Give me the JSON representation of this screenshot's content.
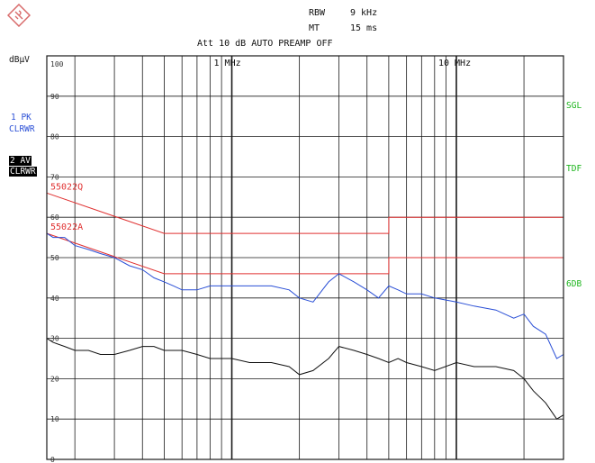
{
  "header": {
    "rbw_label": "RBW",
    "rbw_value": "9 kHz",
    "mt_label": "MT",
    "mt_value": "15 ms",
    "att_line": "Att 10 dB AUTO  PREAMP OFF"
  },
  "left_panel": {
    "unit": "dBµV",
    "trace1_line1": "1 PK",
    "trace1_line2": "CLRWR",
    "trace2_line1": "2 AV",
    "trace2_line2": "CLRWR"
  },
  "right_panel": {
    "sgl": "SGL",
    "tdf": "TDF",
    "sixdb": "6DB"
  },
  "colors": {
    "pk_trace": "#2a4fd6",
    "av_trace": "#111111",
    "limit": "#e03030",
    "grid": "#1a1a1a",
    "annotation_green": "#1db51d"
  },
  "chart_data": {
    "type": "line",
    "title": "",
    "xlabel": "",
    "ylabel": "dBµV",
    "x_scale": "log",
    "xlim": [
      150000,
      30000000
    ],
    "ylim": [
      0,
      100
    ],
    "y_ticks": [
      100,
      90,
      80,
      70,
      60,
      50,
      40,
      30,
      20,
      10,
      0
    ],
    "x_tick_labels": [
      {
        "x": 1000000,
        "label": "1 MHz"
      },
      {
        "x": 10000000,
        "label": "10 MHz"
      }
    ],
    "grid": true,
    "limit_lines": [
      {
        "name": "55022Q",
        "points": [
          [
            150000,
            66
          ],
          [
            500000,
            56
          ],
          [
            5000000,
            56
          ],
          [
            5000000,
            60
          ],
          [
            30000000,
            60
          ]
        ]
      },
      {
        "name": "55022A",
        "points": [
          [
            150000,
            56
          ],
          [
            500000,
            46
          ],
          [
            5000000,
            46
          ],
          [
            5000000,
            50
          ],
          [
            30000000,
            50
          ]
        ]
      }
    ],
    "series": [
      {
        "name": "1 PK",
        "x": [
          150000,
          160000,
          180000,
          200000,
          230000,
          260000,
          300000,
          350000,
          400000,
          450000,
          500000,
          550000,
          600000,
          700000,
          800000,
          900000,
          1000000,
          1200000,
          1500000,
          1800000,
          2000000,
          2300000,
          2700000,
          3000000,
          3500000,
          4000000,
          4500000,
          5000000,
          5500000,
          6000000,
          7000000,
          8000000,
          10000000,
          12000000,
          15000000,
          18000000,
          20000000,
          22000000,
          25000000,
          28000000,
          30000000
        ],
        "values": [
          56,
          55,
          55,
          53,
          52,
          51,
          50,
          48,
          47,
          45,
          44,
          43,
          42,
          42,
          43,
          43,
          43,
          43,
          43,
          42,
          40,
          39,
          44,
          46,
          44,
          42,
          40,
          43,
          42,
          41,
          41,
          40,
          39,
          38,
          37,
          35,
          36,
          33,
          31,
          25,
          26
        ]
      },
      {
        "name": "2 AV",
        "x": [
          150000,
          160000,
          180000,
          200000,
          230000,
          260000,
          300000,
          350000,
          400000,
          450000,
          500000,
          550000,
          600000,
          700000,
          800000,
          900000,
          1000000,
          1200000,
          1500000,
          1800000,
          2000000,
          2300000,
          2700000,
          3000000,
          3500000,
          4000000,
          4500000,
          5000000,
          5500000,
          6000000,
          7000000,
          8000000,
          10000000,
          12000000,
          15000000,
          18000000,
          20000000,
          22000000,
          25000000,
          28000000,
          30000000
        ],
        "values": [
          30,
          29,
          28,
          27,
          27,
          26,
          26,
          27,
          28,
          28,
          27,
          27,
          27,
          26,
          25,
          25,
          25,
          24,
          24,
          23,
          21,
          22,
          25,
          28,
          27,
          26,
          25,
          24,
          25,
          24,
          23,
          22,
          24,
          23,
          23,
          22,
          20,
          17,
          14,
          10,
          11
        ]
      }
    ]
  }
}
